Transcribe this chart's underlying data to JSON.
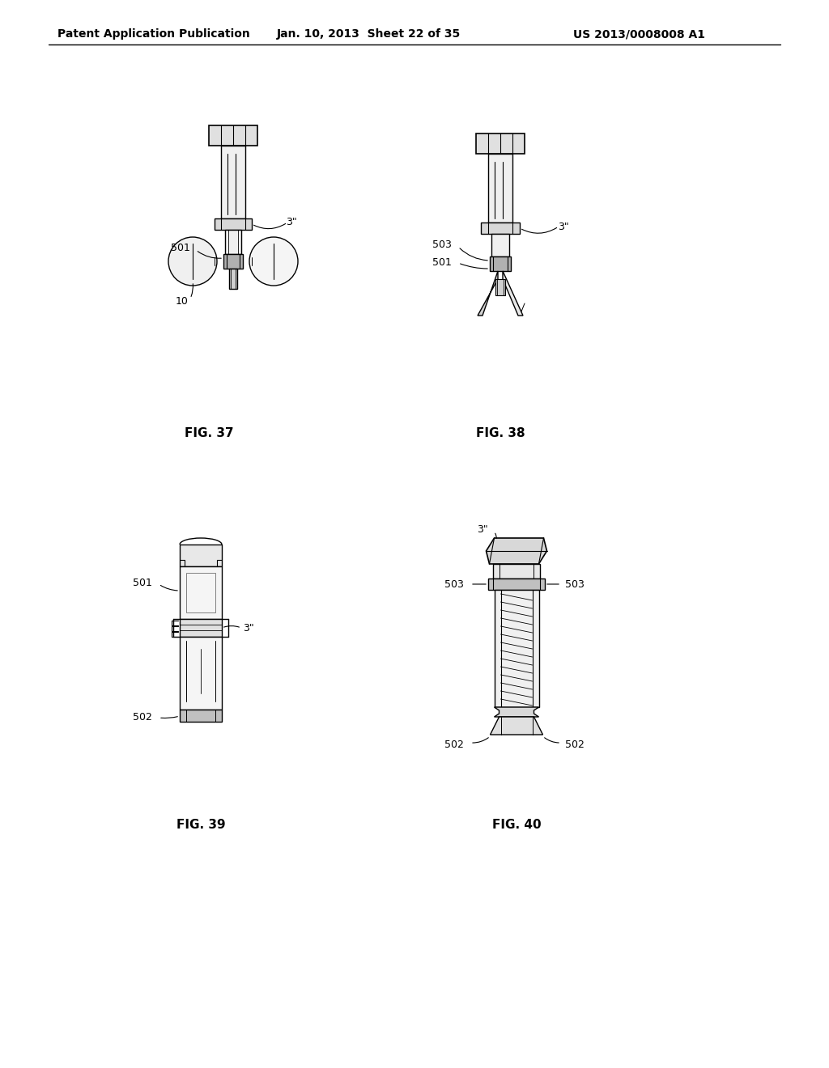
{
  "header_left": "Patent Application Publication",
  "header_middle": "Jan. 10, 2013  Sheet 22 of 35",
  "header_right": "US 2013/0008008 A1",
  "fig_labels": [
    "FIG. 37",
    "FIG. 38",
    "FIG. 39",
    "FIG. 40"
  ],
  "fig_label_fontsize": 11,
  "background_color": "#ffffff",
  "line_color": "#000000",
  "annotation_fontsize": 9
}
